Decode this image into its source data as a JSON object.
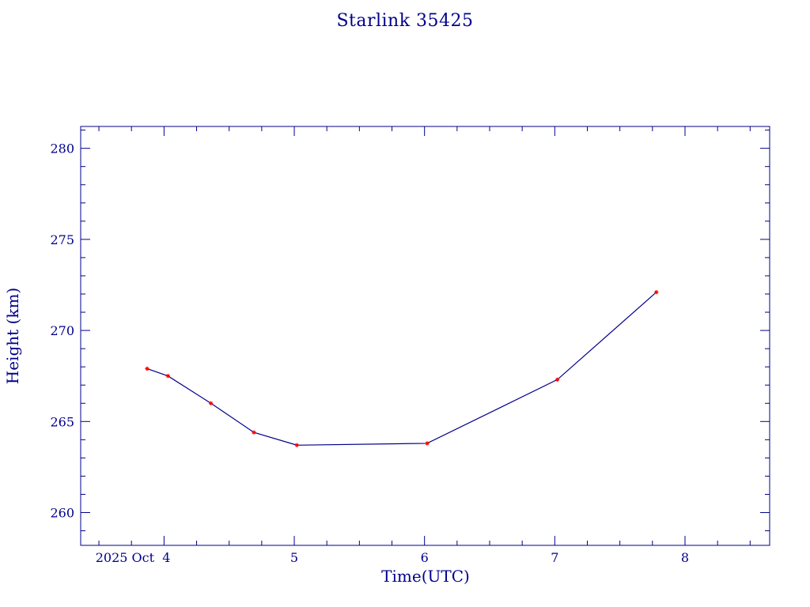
{
  "chart_data": {
    "type": "line",
    "title": "Starlink 35425",
    "xlabel": "Time(UTC)",
    "ylabel": "Height (km)",
    "x_unit": "day of 2025 Oct",
    "x_tick_values": [
      4,
      5,
      6,
      7,
      8
    ],
    "x_tick_labels": [
      "2025 Oct  4",
      "5",
      "6",
      "7",
      "8"
    ],
    "xlim": [
      3.36,
      8.65
    ],
    "ylim": [
      258.2,
      281.2
    ],
    "y_tick_values": [
      260,
      265,
      270,
      275,
      280
    ],
    "y_tick_labels": [
      "260",
      "265",
      "270",
      "275",
      "280"
    ],
    "grid": false,
    "line_color": "#00008b",
    "marker_color": "#ff0000",
    "series": [
      {
        "x": [
          3.87,
          4.03,
          4.36,
          4.69,
          5.02,
          6.02,
          7.02,
          7.78
        ],
        "y": [
          267.9,
          267.5,
          266.0,
          264.4,
          263.7,
          263.8,
          267.3,
          272.1
        ]
      }
    ]
  }
}
